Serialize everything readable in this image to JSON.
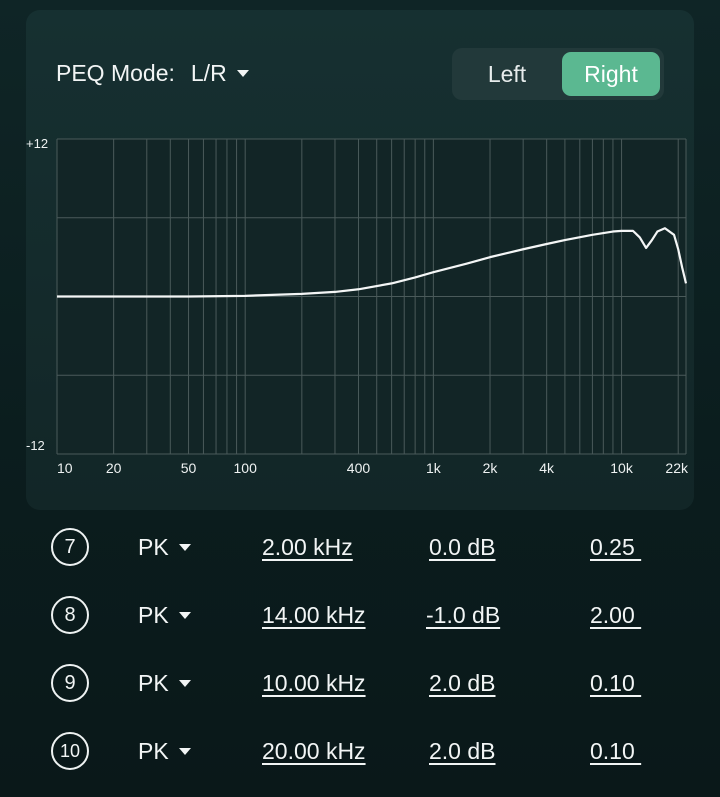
{
  "header": {
    "peq_mode_label": "PEQ Mode:",
    "peq_mode_value": "L/R",
    "channels": [
      {
        "label": "Left",
        "selected": false
      },
      {
        "label": "Right",
        "selected": true
      }
    ]
  },
  "chart_data": {
    "type": "line",
    "y_top_label": "+12",
    "y_bottom_label": "-12",
    "ylim": [
      -12,
      12
    ],
    "xscale": "log",
    "xlim": [
      10,
      22000
    ],
    "x_tick_labels": [
      {
        "label": "10",
        "hz": 10
      },
      {
        "label": "20",
        "hz": 20
      },
      {
        "label": "50",
        "hz": 50
      },
      {
        "label": "100",
        "hz": 100
      },
      {
        "label": "400",
        "hz": 400
      },
      {
        "label": "1k",
        "hz": 1000
      },
      {
        "label": "2k",
        "hz": 2000
      },
      {
        "label": "4k",
        "hz": 4000
      },
      {
        "label": "10k",
        "hz": 10000
      },
      {
        "label": "22k",
        "hz": 22000
      }
    ],
    "series": [
      {
        "x": [
          10,
          50,
          100,
          200,
          300,
          400,
          600,
          800,
          1000,
          1500,
          2000,
          3000,
          4000,
          5000,
          7000,
          9000,
          10000,
          11500,
          12500,
          13500,
          14500,
          15500,
          17000,
          19000,
          20000,
          21000,
          22000
        ],
        "y": [
          0.0,
          0.0,
          0.05,
          0.2,
          0.35,
          0.55,
          1.0,
          1.45,
          1.85,
          2.5,
          3.0,
          3.6,
          4.0,
          4.3,
          4.7,
          4.95,
          5.0,
          5.0,
          4.5,
          3.7,
          4.3,
          4.95,
          5.2,
          4.7,
          3.6,
          2.2,
          1.0
        ]
      }
    ],
    "colors": {
      "line": "#f4f6f6",
      "grid": "#4a5a5a",
      "plot_bg": "#122526"
    }
  },
  "bands": [
    {
      "number": "7",
      "type": "PK",
      "freq": "2.00 kHz",
      "gain": "0.0 dB",
      "q": "0.25 "
    },
    {
      "number": "8",
      "type": "PK",
      "freq": "14.00 kHz",
      "gain": "-1.0 dB",
      "q": "2.00 "
    },
    {
      "number": "9",
      "type": "PK",
      "freq": "10.00 kHz",
      "gain": "2.0 dB",
      "q": "0.10 "
    },
    {
      "number": "10",
      "type": "PK",
      "freq": "20.00 kHz",
      "gain": "2.0 dB",
      "q": "0.10 "
    }
  ]
}
